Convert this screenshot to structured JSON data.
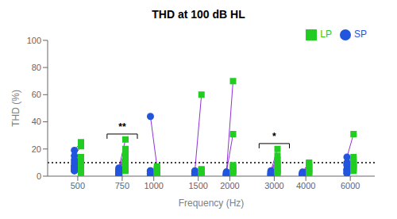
{
  "chart_data": {
    "type": "scatter",
    "title": "THD at 100 dB HL",
    "x_label": "Frequency (Hz)",
    "y_label": "THD (%)",
    "x": [
      500,
      750,
      1000,
      1500,
      2000,
      3000,
      4000,
      6000
    ],
    "xlim": [
      380,
      7500
    ],
    "xticks": [
      500,
      750,
      1000,
      1500,
      2000,
      3000,
      4000,
      6000
    ],
    "ylim": [
      0,
      100
    ],
    "yticks": [
      0,
      20,
      40,
      60,
      80,
      100
    ],
    "log": "x",
    "grid": false,
    "legend": "upper right",
    "series": [
      {
        "name": "SP",
        "color": "#2255dd",
        "marker": "circle",
        "values": [
          [
            19,
            15,
            12,
            10,
            8,
            7,
            6,
            5,
            4,
            4
          ],
          [
            6,
            5,
            4,
            4,
            3,
            3,
            2,
            2,
            1,
            1
          ],
          [
            44,
            4,
            4,
            3,
            3,
            2,
            2,
            2,
            2,
            1
          ],
          [
            4,
            3,
            3,
            2,
            2,
            2,
            2,
            1,
            1,
            1
          ],
          [
            3,
            3,
            2,
            2,
            2,
            1,
            1,
            1,
            1,
            1
          ],
          [
            4,
            3,
            3,
            2,
            2,
            2,
            1,
            1,
            1,
            1
          ],
          [
            3,
            2,
            2,
            2,
            1,
            1,
            1,
            1,
            1,
            1
          ],
          [
            14,
            10,
            9,
            8,
            5,
            5,
            4,
            3,
            2,
            2
          ]
        ]
      },
      {
        "name": "LP",
        "color": "#22cc22",
        "marker": "square",
        "values": [
          [
            25,
            22,
            14,
            10,
            8,
            6,
            5,
            4,
            3,
            2
          ],
          [
            27,
            20,
            17,
            14,
            12,
            10,
            8,
            7,
            5,
            4
          ],
          [
            7,
            6,
            5,
            5,
            4,
            3,
            3,
            2,
            2,
            1
          ],
          [
            60,
            5,
            5,
            4,
            4,
            3,
            3,
            2,
            2,
            1
          ],
          [
            70,
            31,
            8,
            7,
            6,
            5,
            4,
            4,
            3,
            2
          ],
          [
            20,
            15,
            12,
            10,
            8,
            7,
            5,
            4,
            3,
            2
          ],
          [
            10,
            9,
            8,
            7,
            6,
            5,
            4,
            3,
            3,
            2
          ],
          [
            31,
            14,
            12,
            10,
            9,
            8,
            7,
            6,
            5,
            4
          ]
        ]
      }
    ],
    "pair_lines": {
      "color": "#7700cc"
    },
    "annotations": [
      {
        "type": "hline",
        "y": 10,
        "line_style": "dotted"
      },
      {
        "type": "bracket",
        "x": 750,
        "y": 31,
        "half_width_log": 0.06,
        "label": "**"
      },
      {
        "type": "bracket",
        "x": 3000,
        "y": 24,
        "half_width_log": 0.06,
        "label": "*"
      }
    ]
  }
}
